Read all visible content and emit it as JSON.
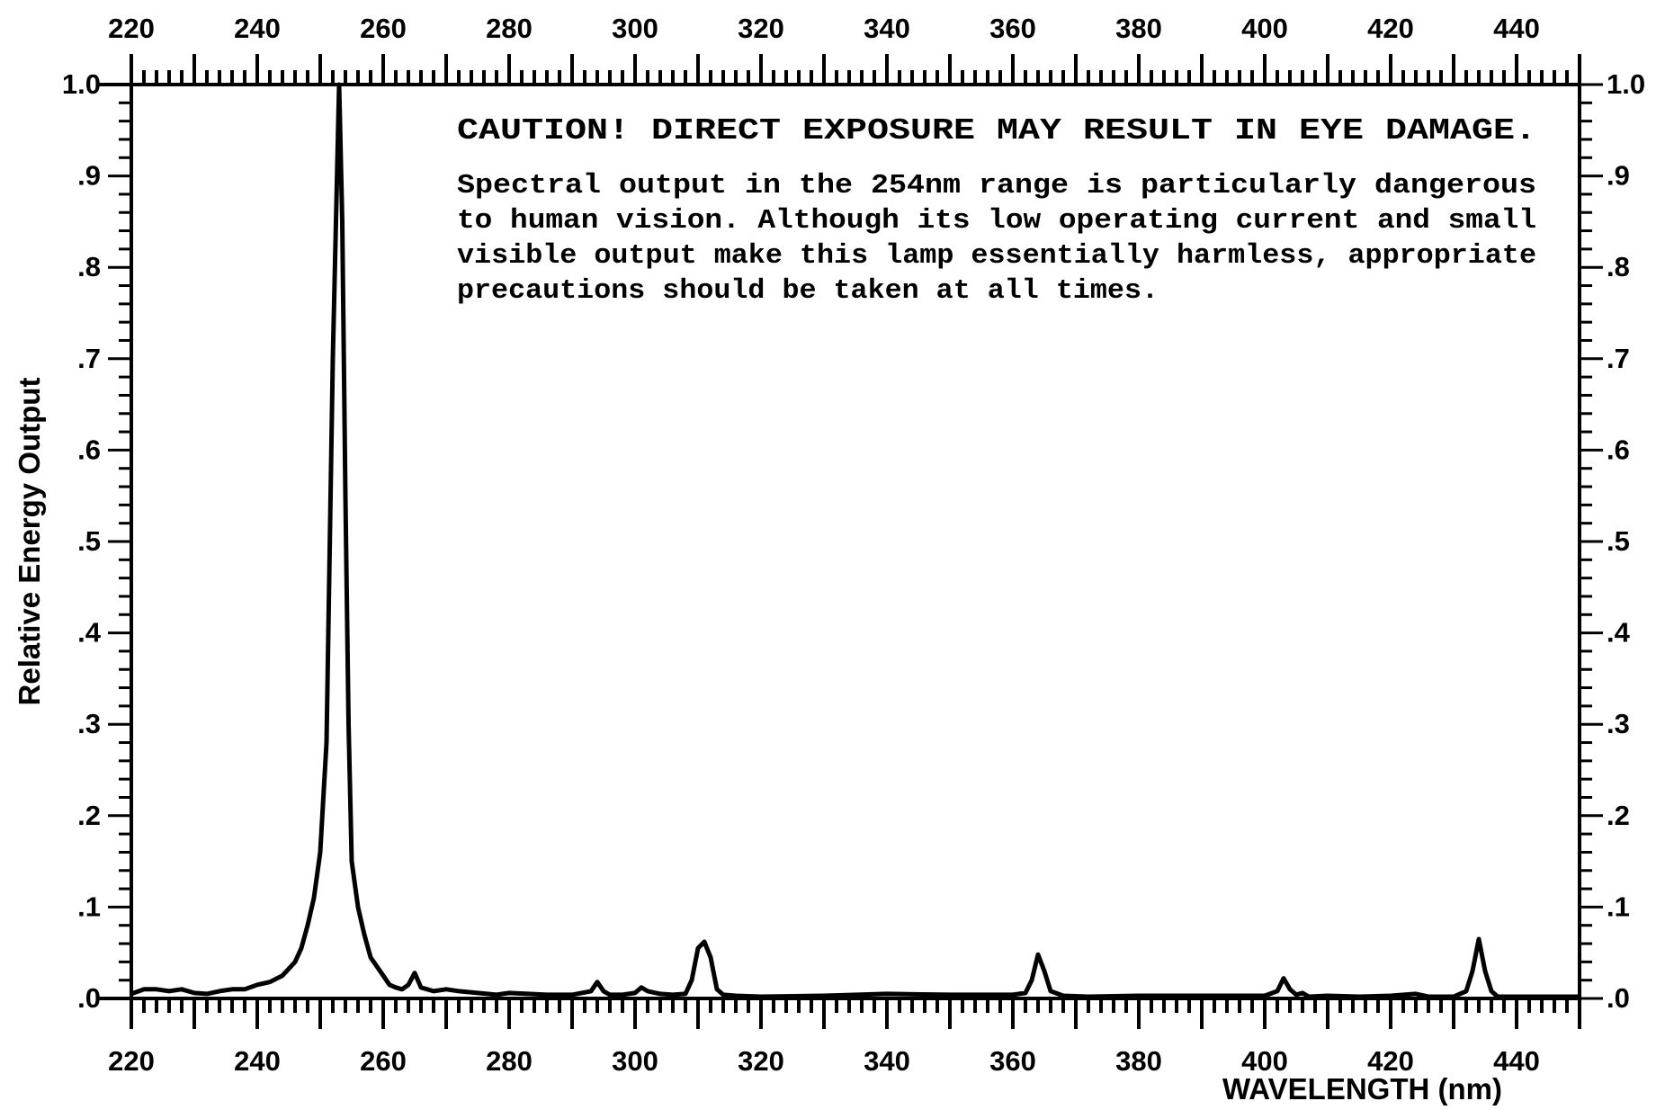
{
  "chart_data": {
    "type": "line",
    "xlabel": "WAVELENGTH (nm)",
    "ylabel": "Relative Energy Output",
    "xlim": [
      220,
      450
    ],
    "ylim": [
      0,
      1.0
    ],
    "x_ticks": [
      220,
      240,
      260,
      280,
      300,
      320,
      340,
      360,
      380,
      400,
      420,
      440
    ],
    "x_tick_labels": [
      "220",
      "240",
      "260",
      "280",
      "300",
      "320",
      "340",
      "360",
      "380",
      "400",
      "420",
      "440"
    ],
    "y_ticks": [
      0,
      0.1,
      0.2,
      0.3,
      0.4,
      0.5,
      0.6,
      0.7,
      0.8,
      0.9,
      1.0
    ],
    "y_tick_labels": [
      ".0",
      ".1",
      ".2",
      ".3",
      ".4",
      ".5",
      ".6",
      ".7",
      ".8",
      ".9",
      "1.0"
    ],
    "grid": false,
    "series": [
      {
        "x": [
          220,
          222,
          224,
          226,
          228,
          230,
          232,
          234,
          236,
          238,
          240,
          242,
          244,
          246,
          247,
          248,
          249,
          250,
          251,
          252,
          253,
          253.5,
          254,
          254.5,
          255,
          256,
          257,
          258,
          260,
          261,
          262,
          263,
          264,
          265,
          266,
          268,
          270,
          272,
          275,
          278,
          280,
          283,
          286,
          290,
          293,
          294,
          295,
          296,
          298,
          300,
          301,
          302,
          304,
          306,
          308,
          309,
          310,
          311,
          312,
          313,
          314,
          316,
          320,
          330,
          340,
          350,
          360,
          362,
          363,
          364,
          365,
          366,
          368,
          372,
          380,
          390,
          400,
          402,
          403,
          404,
          405,
          406,
          407,
          410,
          415,
          420,
          424,
          426,
          430,
          432,
          433,
          434,
          435,
          436,
          437,
          438,
          440,
          445,
          450
        ],
        "y": [
          0.005,
          0.01,
          0.01,
          0.008,
          0.01,
          0.006,
          0.005,
          0.008,
          0.01,
          0.01,
          0.015,
          0.018,
          0.025,
          0.04,
          0.055,
          0.08,
          0.11,
          0.16,
          0.28,
          0.7,
          1.0,
          0.85,
          0.55,
          0.3,
          0.15,
          0.1,
          0.07,
          0.045,
          0.025,
          0.015,
          0.012,
          0.01,
          0.015,
          0.028,
          0.012,
          0.008,
          0.01,
          0.008,
          0.006,
          0.004,
          0.006,
          0.005,
          0.004,
          0.004,
          0.008,
          0.018,
          0.008,
          0.004,
          0.004,
          0.006,
          0.012,
          0.008,
          0.005,
          0.004,
          0.005,
          0.02,
          0.055,
          0.062,
          0.045,
          0.01,
          0.004,
          0.003,
          0.002,
          0.003,
          0.005,
          0.004,
          0.004,
          0.006,
          0.02,
          0.048,
          0.03,
          0.008,
          0.003,
          0.002,
          0.003,
          0.003,
          0.003,
          0.008,
          0.022,
          0.01,
          0.004,
          0.006,
          0.002,
          0.003,
          0.002,
          0.003,
          0.005,
          0.002,
          0.002,
          0.008,
          0.03,
          0.065,
          0.03,
          0.008,
          0.002,
          0.002,
          0.002,
          0.002,
          0.002
        ]
      }
    ],
    "annotation": {
      "caution": "CAUTION! DIRECT EXPOSURE MAY RESULT IN EYE DAMAGE.",
      "lines": [
        "Spectral output in the 254nm range is particularly dangerous",
        "to human vision. Although its low operating current and small",
        "visible output make this lamp essentially harmless, appropriate",
        "precautions should be taken at all times."
      ]
    }
  }
}
